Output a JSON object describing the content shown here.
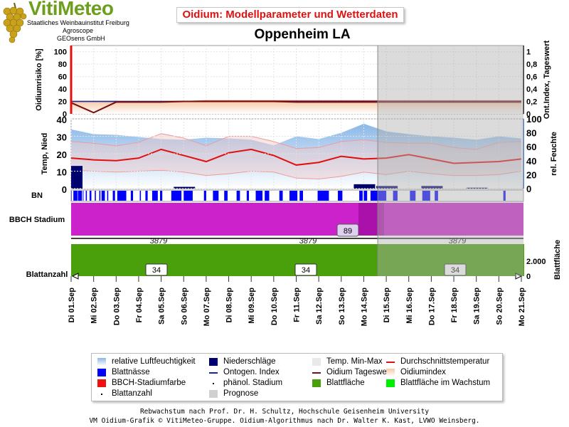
{
  "header": {
    "logo_text": "VitiMeteo",
    "logo_lines": [
      "Staatliches Weinbauinstitut Freiburg",
      "Agroscope",
      "GEOsens GmbH"
    ],
    "title": "Oidium: Modellparameter und Wetterdaten",
    "subtitle": "Oppenheim LA",
    "colors": {
      "logo": "#6c9f1b",
      "title": "#e01010"
    }
  },
  "chart_data": [
    {
      "type": "line",
      "name": "oidium-panel",
      "ylabel_left": "Oidiumrisiko [%]",
      "ylabel_right": "Ont.Index, Tageswert",
      "yticks_left": [
        "0",
        "20",
        "40",
        "60",
        "80",
        "100"
      ],
      "yticks_right": [
        "0",
        "0,2",
        "0,4",
        "0,6",
        "0,8",
        "1"
      ],
      "ylim_left": [
        0,
        110
      ],
      "ylim_right": [
        0,
        1.1
      ],
      "oidium_tageswert": [
        0.18,
        0.02,
        0.19,
        0.19,
        0.19,
        0.2,
        0.2,
        0.2,
        0.2,
        0.2,
        0.19,
        0.19,
        0.19,
        0.19,
        0.19,
        0.19,
        0.19,
        0.19,
        0.19,
        0.19,
        0.19
      ],
      "oidiumindex": [
        20,
        20,
        20,
        20,
        20,
        20,
        21,
        21,
        21,
        21,
        21,
        21,
        21,
        21,
        21,
        21,
        21,
        21,
        21,
        21,
        21
      ],
      "ontogen_index": [
        0.2,
        0.2,
        0.2,
        0.2,
        0.2,
        0.2,
        0.2,
        0.2,
        0.2,
        0.2,
        0.2,
        0.2,
        0.2,
        0.2,
        0.2,
        0.2,
        0.2,
        0.2,
        0.2,
        0.2,
        0.2
      ]
    },
    {
      "type": "line",
      "name": "weather-panel",
      "ylabel_left": "Temp, Nied",
      "ylabel_right": "rel. Feuchte",
      "yticks_left": [
        "0",
        "10",
        "20",
        "30",
        "40"
      ],
      "yticks_right": [
        "0",
        "20",
        "40",
        "60",
        "80",
        "100"
      ],
      "ylim_left": [
        0,
        40
      ],
      "ylim_right": [
        0,
        100
      ],
      "temp_mean": [
        17.5,
        16.5,
        16,
        17.5,
        22.5,
        19,
        15.5,
        20.5,
        22.5,
        19,
        13.5,
        15,
        18.5,
        17,
        17.5,
        19.5,
        17,
        14.5,
        15,
        15.5,
        17
      ],
      "temp_min": [
        10.5,
        10,
        9.5,
        10,
        10.5,
        9.5,
        7.5,
        8.5,
        10,
        9.5,
        6,
        5.5,
        7,
        9.5,
        8,
        10,
        8.5,
        7.5,
        7.5,
        8,
        10
      ],
      "temp_max": [
        27,
        26,
        24.5,
        26.5,
        31.5,
        29,
        24.5,
        30,
        30,
        27,
        23,
        23.5,
        27,
        28,
        26.5,
        26,
        26,
        23.5,
        22.5,
        26.5,
        27
      ],
      "rel_feuchte": [
        85,
        78,
        77,
        74,
        71,
        70,
        73,
        72,
        70,
        62,
        75,
        71,
        80,
        93,
        82,
        78,
        75,
        73,
        70,
        75,
        72
      ],
      "niederschlag": [
        13,
        0,
        0,
        0,
        0,
        1,
        0,
        0,
        0,
        0,
        0,
        0,
        0,
        2.5,
        1.5,
        0,
        1.5,
        0,
        0.5,
        0,
        0
      ]
    },
    {
      "type": "bar",
      "name": "bbch-panel",
      "ylabel": "BBCH Stadium",
      "stage_label": "89",
      "phen_labels": [
        "3879",
        "3879",
        "3879"
      ]
    },
    {
      "type": "area",
      "name": "leaf-panel",
      "ylabel_left": "Blattanzahl",
      "ylabel_right": "Blattfläche",
      "yticks_right": [
        "0",
        "2.000"
      ],
      "blattanzahl_labels": [
        "34",
        "34",
        "34"
      ]
    }
  ],
  "bn_label": "BN",
  "blattnaesse_segments": [
    [
      0.0,
      0.02
    ],
    [
      0.1,
      0.28
    ],
    [
      0.3,
      0.48
    ],
    [
      0.52,
      0.55
    ],
    [
      0.65,
      0.7
    ],
    [
      0.82,
      0.9
    ],
    [
      1.05,
      1.1
    ],
    [
      1.25,
      1.3
    ],
    [
      1.35,
      1.5
    ],
    [
      1.6,
      1.65
    ],
    [
      1.85,
      1.95
    ],
    [
      2.05,
      2.45
    ],
    [
      2.65,
      2.75
    ],
    [
      3.05,
      3.1
    ],
    [
      3.3,
      3.4
    ],
    [
      3.6,
      3.85
    ],
    [
      3.95,
      4.05
    ],
    [
      4.45,
      4.9
    ],
    [
      5.0,
      5.4
    ],
    [
      5.9,
      6.0
    ],
    [
      6.3,
      6.55
    ],
    [
      6.8,
      6.95
    ],
    [
      7.35,
      7.5
    ],
    [
      7.8,
      7.9
    ],
    [
      8.2,
      8.5
    ],
    [
      8.6,
      8.8
    ],
    [
      9.25,
      9.4
    ],
    [
      9.7,
      10.05
    ],
    [
      10.15,
      10.3
    ],
    [
      10.95,
      11.45
    ],
    [
      11.85,
      12.05
    ],
    [
      12.8,
      12.95
    ],
    [
      13.0,
      13.15
    ],
    [
      13.3,
      14.0
    ],
    [
      14.3,
      14.5
    ],
    [
      15.05,
      15.3
    ],
    [
      15.6,
      15.95
    ],
    [
      16.15,
      16.3
    ],
    [
      19.2,
      19.3
    ]
  ],
  "prognose_start_index": 14,
  "x_labels": [
    "Di 01.Sep",
    "Mi 02.Sep",
    "Do 03.Sep",
    "Fr 04.Sep",
    "Sa 05.Sep",
    "So 06.Sep",
    "Mo 07.Sep",
    "Di 08.Sep",
    "Mi 09.Sep",
    "Do 10.Sep",
    "Fr 11.Sep",
    "Sa 12.Sep",
    "So 13.Sep",
    "Mo 14.Sep",
    "Di 15.Sep",
    "Mi 16.Sep",
    "Do 17.Sep",
    "Fr 18.Sep",
    "Sa 19.Sep",
    "So 20.Sep",
    "Mo 21.Sep"
  ],
  "legend": [
    {
      "label": "relative Luftfeuchtigkeit",
      "swatch": "humid"
    },
    {
      "label": "Niederschläge",
      "swatch": "#00006e"
    },
    {
      "label": "Temp. Min-Max",
      "swatch": "#e9e9e9"
    },
    {
      "label": "Durchschnittstemperatur",
      "swatch": "line-red"
    },
    {
      "label": "Blattnässe",
      "swatch": "#0000ff"
    },
    {
      "label": "Ontogen. Index",
      "swatch": "line-blue"
    },
    {
      "label": "Oidium Tageswert",
      "swatch": "line-darkred"
    },
    {
      "label": "Oidiumindex",
      "swatch": "oidium"
    },
    {
      "label": "BBCH-Stadiumfarbe",
      "swatch": "#ee1111"
    },
    {
      "label": "phänol. Stadium",
      "swatch": "dot"
    },
    {
      "label": "Blattfläche",
      "swatch": "#4aa00a"
    },
    {
      "label": "Blattfläche im Wachstum",
      "swatch": "#00ee00"
    },
    {
      "label": "Blattanzahl",
      "swatch": "dot"
    },
    {
      "label": "Prognose",
      "swatch": "#d0d0d0"
    }
  ],
  "footer": [
    "Rebwachstum nach Prof. Dr. H. Schultz, Hochschule Geisenheim University",
    "VM Oidium-Grafik © VitiMeteo-Gruppe. Oidium-Algorithmus nach Dr. Walter K. Kast, LVWO Weinsberg."
  ]
}
